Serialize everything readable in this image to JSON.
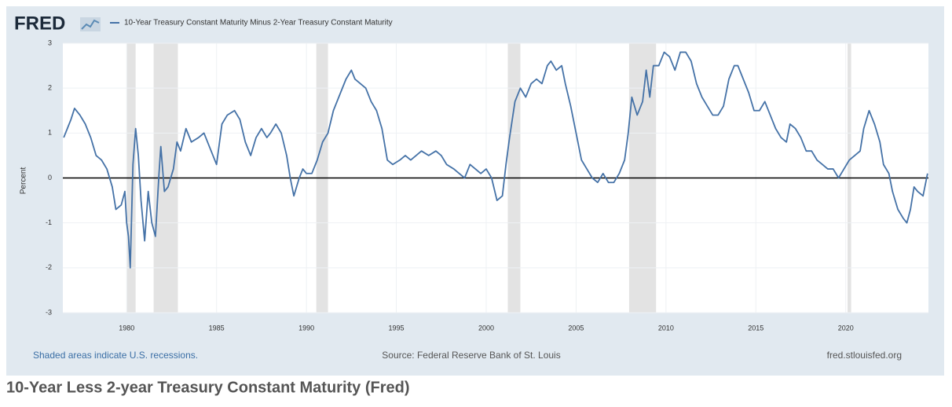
{
  "chart_data": {
    "type": "line",
    "logo": "FRED",
    "ylabel": "Percent",
    "note": "Shaded areas indicate U.S. recessions.",
    "source": "Source: Federal Reserve Bank of St. Louis",
    "site": "fred.stlouisfed.org",
    "caption": "10-Year Less 2-year Treasury Constant Maturity (Fred)",
    "xlim": [
      1976.45,
      2024.6
    ],
    "ylim": [
      -3,
      3
    ],
    "xticks": [
      1980,
      1985,
      1990,
      1995,
      2000,
      2005,
      2010,
      2015,
      2020
    ],
    "yticks": [
      -3,
      -2,
      -1,
      0,
      1,
      2,
      3
    ],
    "grid": true,
    "reference_line": 0,
    "recessions": [
      [
        1980.0,
        1980.5
      ],
      [
        1981.5,
        1982.85
      ],
      [
        1990.55,
        1991.2
      ],
      [
        2001.2,
        2001.9
      ],
      [
        2007.95,
        2009.45
      ],
      [
        2020.1,
        2020.3
      ]
    ],
    "x": [
      1976.5,
      1976.7,
      1976.9,
      1977.1,
      1977.4,
      1977.7,
      1978.0,
      1978.3,
      1978.6,
      1978.9,
      1979.2,
      1979.4,
      1979.7,
      1979.9,
      1980.0,
      1980.1,
      1980.2,
      1980.35,
      1980.5,
      1980.65,
      1980.8,
      1981.0,
      1981.2,
      1981.4,
      1981.6,
      1981.8,
      1981.9,
      1982.1,
      1982.3,
      1982.6,
      1982.8,
      1983.0,
      1983.3,
      1983.6,
      1984.0,
      1984.3,
      1984.7,
      1985.0,
      1985.3,
      1985.6,
      1986.0,
      1986.3,
      1986.6,
      1986.9,
      1987.2,
      1987.5,
      1987.8,
      1988.0,
      1988.3,
      1988.6,
      1988.9,
      1989.1,
      1989.3,
      1989.6,
      1989.8,
      1990.0,
      1990.3,
      1990.6,
      1990.9,
      1991.2,
      1991.5,
      1991.9,
      1992.2,
      1992.5,
      1992.7,
      1993.0,
      1993.3,
      1993.6,
      1993.9,
      1994.2,
      1994.5,
      1994.8,
      1995.2,
      1995.5,
      1995.8,
      1996.1,
      1996.4,
      1996.8,
      1997.2,
      1997.5,
      1997.8,
      1998.2,
      1998.5,
      1998.8,
      1999.1,
      1999.4,
      1999.7,
      2000.0,
      2000.3,
      2000.6,
      2000.9,
      2001.1,
      2001.3,
      2001.6,
      2001.9,
      2002.2,
      2002.5,
      2002.8,
      2003.1,
      2003.4,
      2003.6,
      2003.9,
      2004.2,
      2004.4,
      2004.7,
      2005.0,
      2005.3,
      2005.6,
      2005.9,
      2006.2,
      2006.5,
      2006.8,
      2007.1,
      2007.4,
      2007.7,
      2007.9,
      2008.1,
      2008.4,
      2008.7,
      2008.9,
      2009.1,
      2009.3,
      2009.6,
      2009.9,
      2010.2,
      2010.5,
      2010.8,
      2011.1,
      2011.4,
      2011.7,
      2012.0,
      2012.3,
      2012.6,
      2012.9,
      2013.2,
      2013.5,
      2013.8,
      2014.0,
      2014.3,
      2014.6,
      2014.9,
      2015.2,
      2015.5,
      2015.8,
      2016.1,
      2016.4,
      2016.7,
      2016.9,
      2017.2,
      2017.5,
      2017.8,
      2018.1,
      2018.4,
      2018.7,
      2019.0,
      2019.3,
      2019.6,
      2019.9,
      2020.2,
      2020.5,
      2020.8,
      2021.0,
      2021.3,
      2021.6,
      2021.9,
      2022.1,
      2022.4,
      2022.6,
      2022.9,
      2023.2,
      2023.4,
      2023.6,
      2023.8,
      2024.0,
      2024.3,
      2024.55
    ],
    "series": [
      {
        "name": "10-Year Treasury Constant Maturity Minus 2-Year Treasury Constant Maturity",
        "color": "#4572a7",
        "values": [
          0.9,
          1.1,
          1.3,
          1.55,
          1.4,
          1.2,
          0.9,
          0.5,
          0.4,
          0.2,
          -0.2,
          -0.7,
          -0.6,
          -0.3,
          -1.0,
          -1.3,
          -2.0,
          0.3,
          1.1,
          0.5,
          -0.5,
          -1.4,
          -0.3,
          -1.0,
          -1.3,
          0.1,
          0.7,
          -0.3,
          -0.2,
          0.2,
          0.8,
          0.6,
          1.1,
          0.8,
          0.9,
          1.0,
          0.6,
          0.3,
          1.2,
          1.4,
          1.5,
          1.3,
          0.8,
          0.5,
          0.9,
          1.1,
          0.9,
          1.0,
          1.2,
          1.0,
          0.5,
          0.0,
          -0.4,
          0.0,
          0.2,
          0.1,
          0.1,
          0.4,
          0.8,
          1.0,
          1.5,
          1.9,
          2.2,
          2.4,
          2.2,
          2.1,
          2.0,
          1.7,
          1.5,
          1.1,
          0.4,
          0.3,
          0.4,
          0.5,
          0.4,
          0.5,
          0.6,
          0.5,
          0.6,
          0.5,
          0.3,
          0.2,
          0.1,
          0.0,
          0.3,
          0.2,
          0.1,
          0.2,
          0.0,
          -0.5,
          -0.4,
          0.3,
          0.9,
          1.7,
          2.0,
          1.8,
          2.1,
          2.2,
          2.1,
          2.5,
          2.6,
          2.4,
          2.5,
          2.1,
          1.6,
          1.0,
          0.4,
          0.2,
          0.0,
          -0.1,
          0.1,
          -0.1,
          -0.1,
          0.1,
          0.4,
          1.0,
          1.8,
          1.4,
          1.7,
          2.4,
          1.8,
          2.5,
          2.5,
          2.8,
          2.7,
          2.4,
          2.8,
          2.8,
          2.6,
          2.1,
          1.8,
          1.6,
          1.4,
          1.4,
          1.6,
          2.2,
          2.5,
          2.5,
          2.2,
          1.9,
          1.5,
          1.5,
          1.7,
          1.4,
          1.1,
          0.9,
          0.8,
          1.2,
          1.1,
          0.9,
          0.6,
          0.6,
          0.4,
          0.3,
          0.2,
          0.2,
          0.0,
          0.2,
          0.4,
          0.5,
          0.6,
          1.1,
          1.5,
          1.2,
          0.8,
          0.3,
          0.1,
          -0.3,
          -0.7,
          -0.9,
          -1.0,
          -0.7,
          -0.2,
          -0.3,
          -0.4,
          0.1
        ]
      }
    ]
  }
}
